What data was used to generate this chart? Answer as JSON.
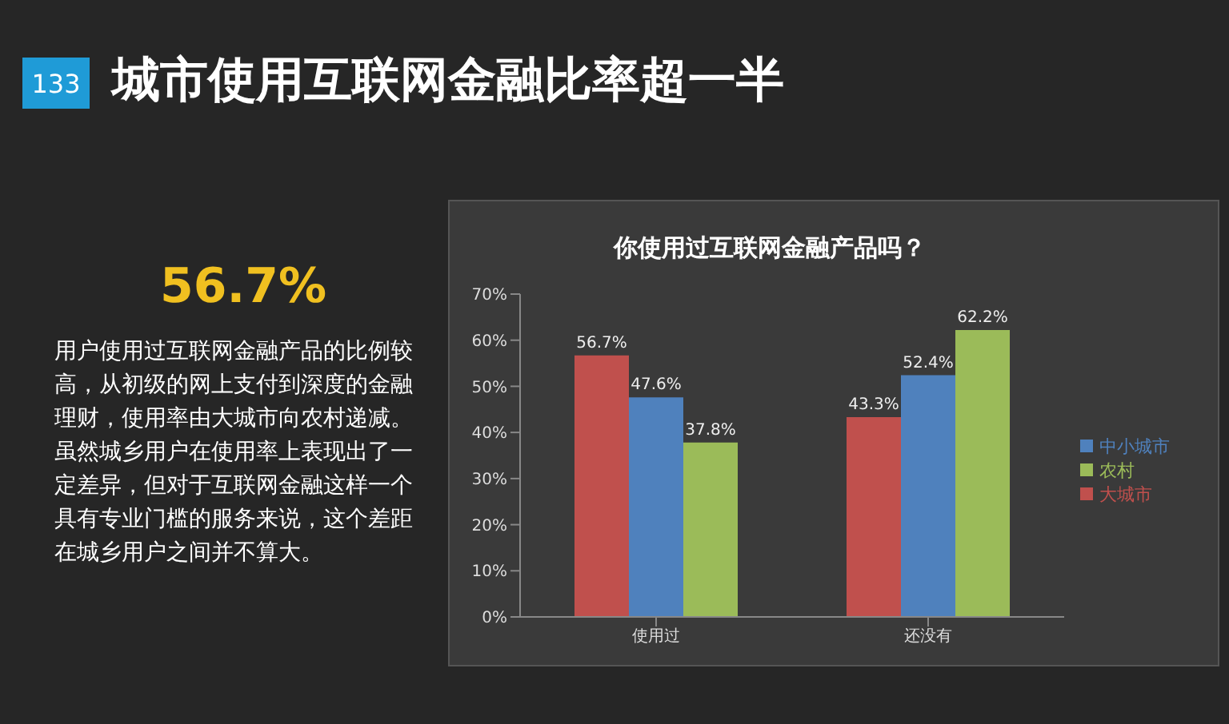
{
  "chart_data": {
    "type": "bar",
    "title": "城市使用互联网金融比率超一半",
    "subtitle": "你使用过互联网金融产品吗？",
    "annotations": [
      "133",
      "56.7%",
      "用户使用过互联网金融产品的比例较高，从初级的网上支付到深度的金融理财，使用率由大城市向农村递减。虽然城乡用户在使用率上表现出了一定差异，但对于互联网金融这样一个具有专业门槛的服务来说，这个差距在城乡用户之间并不算大。"
    ],
    "categories": [
      "使用过",
      "还没有"
    ],
    "series": [
      {
        "name": "大城市",
        "color": "#c0504d",
        "values": [
          56.7,
          43.3
        ],
        "value_labels": [
          "56.7%",
          "43.3%"
        ]
      },
      {
        "name": "中小城市",
        "color": "#4f81bd",
        "values": [
          47.6,
          52.4
        ],
        "value_labels": [
          "47.6%",
          "52.4%"
        ]
      },
      {
        "name": "农村",
        "color": "#9bbb59",
        "values": [
          37.8,
          62.2
        ],
        "value_labels": [
          "37.8%",
          "62.2%"
        ]
      }
    ],
    "ylim": [
      0,
      70
    ],
    "yticks": [
      {
        "value": 0,
        "label": "0%"
      },
      {
        "value": 10,
        "label": "10%"
      },
      {
        "value": 20,
        "label": "20%"
      },
      {
        "value": 30,
        "label": "30%"
      },
      {
        "value": 40,
        "label": "40%"
      },
      {
        "value": 50,
        "label": "50%"
      },
      {
        "value": 60,
        "label": "60%"
      },
      {
        "value": 70,
        "label": "70%"
      }
    ],
    "legend": "right"
  }
}
